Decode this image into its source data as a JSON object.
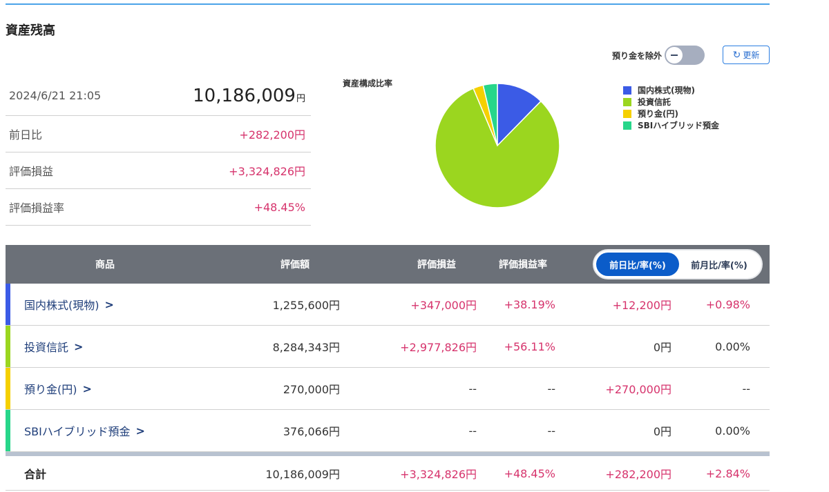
{
  "page": {
    "title": "資産残高"
  },
  "summary": {
    "datetime": "2024/6/21 21:05",
    "total_value": "10,186,009",
    "total_unit": "円",
    "rows": [
      {
        "label": "前日比",
        "value": "+282,200円"
      },
      {
        "label": "評価損益",
        "value": "+3,324,826円"
      },
      {
        "label": "評価損益率",
        "value": "+48.45%"
      }
    ]
  },
  "controls": {
    "exclude_deposit_label": "預り金を除外",
    "refresh_label": "更新",
    "refresh_icon": "refresh-icon"
  },
  "chart_data": {
    "type": "pie",
    "title": "資産構成比率",
    "legend_position": "right",
    "categories": [
      "国内株式(現物)",
      "投資信託",
      "預り金(円)",
      "SBIハイブリッド預金"
    ],
    "values": [
      1255600,
      8284343,
      270000,
      376066
    ],
    "colors": [
      "#3b5be6",
      "#9bd61f",
      "#f5d000",
      "#27d68a"
    ]
  },
  "table": {
    "headers": {
      "product": "商品",
      "value": "評価額",
      "pl": "評価損益",
      "pl_rate": "評価損益率"
    },
    "toggle": {
      "active": "前日比/率(%)",
      "other": "前月比/率(%)"
    },
    "rows": [
      {
        "name": "国内株式(現物)",
        "color": "#3b5be6",
        "value": "1,255,600円",
        "pl": "+347,000円",
        "pl_rate": "+38.19%",
        "day": "+12,200円",
        "day_rate": "+0.98%"
      },
      {
        "name": "投資信託",
        "color": "#9bd61f",
        "value": "8,284,343円",
        "pl": "+2,977,826円",
        "pl_rate": "+56.11%",
        "day": "0円",
        "day_rate": "0.00%"
      },
      {
        "name": "預り金(円)",
        "color": "#f5d000",
        "value": "270,000円",
        "pl": "--",
        "pl_rate": "--",
        "day": "+270,000円",
        "day_rate": "--"
      },
      {
        "name": "SBIハイブリッド預金",
        "color": "#27d68a",
        "value": "376,066円",
        "pl": "--",
        "pl_rate": "--",
        "day": "0円",
        "day_rate": "0.00%"
      }
    ],
    "footer": {
      "label": "合計",
      "value": "10,186,009円",
      "pl": "+3,324,826円",
      "pl_rate": "+48.45%",
      "day": "+282,200円",
      "day_rate": "+2.84%"
    }
  }
}
